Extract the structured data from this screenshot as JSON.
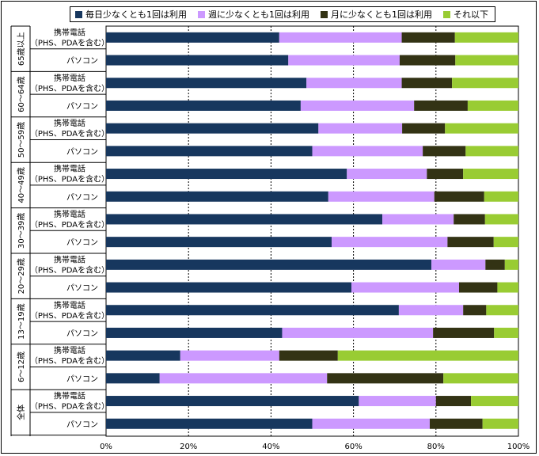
{
  "chart_data": {
    "type": "bar",
    "orientation": "horizontal",
    "stacked": true,
    "xlim": [
      0,
      100
    ],
    "x_ticks": [
      "0%",
      "20%",
      "40%",
      "60%",
      "80%",
      "100%"
    ],
    "legend_position": "top",
    "series": [
      {
        "name": "毎日少なくとも1回は利用",
        "color": "#17375e"
      },
      {
        "name": "週に少なくとも1回は利用",
        "color": "#cc99ff"
      },
      {
        "name": "月に少なくとも1回は利用",
        "color": "#333314"
      },
      {
        "name": "それ以下",
        "color": "#99cc33"
      }
    ],
    "device_labels": {
      "mobile_line1": "携帯電話",
      "mobile_line2": "（PHS、PDAを含む）",
      "pc": "パソコン"
    },
    "groups": [
      {
        "label": "65歳以上",
        "rows": [
          {
            "device": "mobile",
            "values": [
              42.0,
              29.7,
              12.9,
              15.4
            ]
          },
          {
            "device": "pc",
            "values": [
              44.2,
              27.0,
              13.5,
              15.3
            ]
          }
        ]
      },
      {
        "label": "60～64歳",
        "rows": [
          {
            "device": "mobile",
            "values": [
              48.6,
              23.1,
              12.2,
              16.1
            ]
          },
          {
            "device": "pc",
            "values": [
              47.2,
              27.5,
              13.0,
              12.3
            ]
          }
        ]
      },
      {
        "label": "50～59歳",
        "rows": [
          {
            "device": "mobile",
            "values": [
              51.5,
              20.3,
              10.4,
              17.8
            ]
          },
          {
            "device": "pc",
            "values": [
              50.0,
              26.8,
              10.4,
              12.8
            ]
          }
        ]
      },
      {
        "label": "40～49歳",
        "rows": [
          {
            "device": "mobile",
            "values": [
              58.4,
              19.4,
              8.8,
              13.4
            ]
          },
          {
            "device": "pc",
            "values": [
              53.9,
              25.7,
              12.1,
              8.3
            ]
          }
        ]
      },
      {
        "label": "30～39歳",
        "rows": [
          {
            "device": "mobile",
            "values": [
              67.0,
              17.3,
              7.6,
              8.1
            ]
          },
          {
            "device": "pc",
            "values": [
              54.7,
              28.1,
              11.2,
              6.0
            ]
          }
        ]
      },
      {
        "label": "20～29歳",
        "rows": [
          {
            "device": "mobile",
            "values": [
              78.9,
              13.1,
              4.7,
              3.3
            ]
          },
          {
            "device": "pc",
            "values": [
              59.5,
              26.1,
              9.3,
              5.1
            ]
          }
        ]
      },
      {
        "label": "13～19歳",
        "rows": [
          {
            "device": "mobile",
            "values": [
              71.0,
              15.6,
              5.6,
              7.8
            ]
          },
          {
            "device": "pc",
            "values": [
              42.7,
              36.6,
              14.8,
              5.9
            ]
          }
        ]
      },
      {
        "label": "6～12歳",
        "rows": [
          {
            "device": "mobile",
            "values": [
              18.0,
              24.0,
              14.2,
              43.8
            ]
          },
          {
            "device": "pc",
            "values": [
              13.0,
              40.6,
              28.2,
              18.2
            ]
          }
        ]
      },
      {
        "label": "全体",
        "rows": [
          {
            "device": "mobile",
            "values": [
              61.3,
              18.7,
              8.5,
              11.5
            ]
          },
          {
            "device": "pc",
            "values": [
              50.0,
              28.5,
              12.8,
              8.7
            ]
          }
        ]
      }
    ]
  }
}
